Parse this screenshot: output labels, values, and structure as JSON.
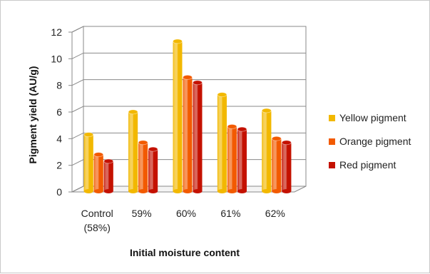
{
  "chart_data": {
    "type": "bar",
    "style": "3d-cylinder",
    "categories": [
      "Control\n(58%)",
      "59%",
      "60%",
      "61%",
      "62%"
    ],
    "series": [
      {
        "name": "Yellow pigment",
        "color": "#f2b800",
        "values": [
          4.2,
          5.9,
          11.2,
          7.2,
          6.0
        ]
      },
      {
        "name": "Orange pigment",
        "color": "#f25a00",
        "values": [
          2.7,
          3.6,
          8.5,
          4.8,
          3.9
        ]
      },
      {
        "name": "Red pigment",
        "color": "#c41100",
        "values": [
          2.2,
          3.1,
          8.1,
          4.6,
          3.6
        ]
      }
    ],
    "xlabel": "Initial moisture content",
    "ylabel": "Pigment yield (AU/g)",
    "ylim": [
      0,
      12
    ],
    "yticks": [
      0,
      2,
      4,
      6,
      8,
      10,
      12
    ],
    "grid": true,
    "legend_position": "right"
  }
}
